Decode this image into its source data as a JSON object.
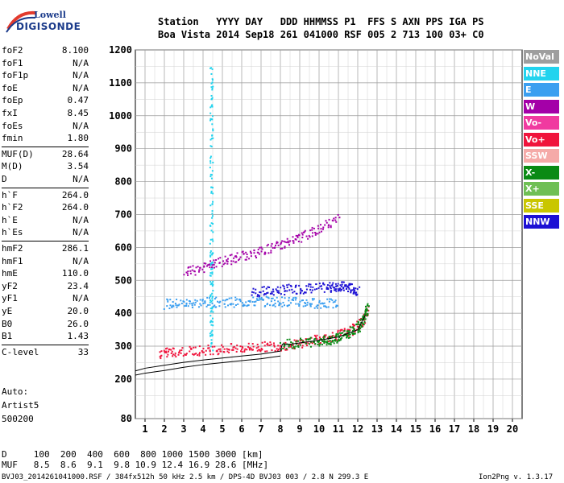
{
  "logo": {
    "top": "Lowell",
    "bottom": "DIGISONDE"
  },
  "header": {
    "line1": "Station   YYYY DAY   DDD HHMMSS P1  FFS S AXN PPS IGA PS",
    "line2": "Boa Vista 2014 Sep18 261 041000 RSF 005 2 713 100 03+ C0"
  },
  "params": [
    {
      "name": "foF2",
      "value": "8.100"
    },
    {
      "name": "foF1",
      "value": "N/A"
    },
    {
      "name": "foF1p",
      "value": "N/A"
    },
    {
      "name": "foE",
      "value": "N/A"
    },
    {
      "name": "foEp",
      "value": "0.47"
    },
    {
      "name": "fxI",
      "value": "8.45"
    },
    {
      "name": "foEs",
      "value": "N/A"
    },
    {
      "name": "fmin",
      "value": "1.80"
    },
    {
      "name": "MUF(D)",
      "value": "28.64"
    },
    {
      "name": "M(D)",
      "value": "3.54"
    },
    {
      "name": "D",
      "value": "N/A"
    },
    {
      "name": "h`F",
      "value": "264.0"
    },
    {
      "name": "h`F2",
      "value": "264.0"
    },
    {
      "name": "h`E",
      "value": "N/A"
    },
    {
      "name": "h`Es",
      "value": "N/A"
    },
    {
      "name": "hmF2",
      "value": "286.1"
    },
    {
      "name": "hmF1",
      "value": "N/A"
    },
    {
      "name": "hmE",
      "value": "110.0"
    },
    {
      "name": "yF2",
      "value": "23.4"
    },
    {
      "name": "yF1",
      "value": "N/A"
    },
    {
      "name": "yE",
      "value": "20.0"
    },
    {
      "name": "B0",
      "value": "26.0"
    },
    {
      "name": "B1",
      "value": "1.43"
    },
    {
      "name": "C-level",
      "value": "33"
    }
  ],
  "auto_label": "Auto:",
  "artist": "Artist5",
  "artist_version": "500200",
  "legend": [
    {
      "label": "NoVal",
      "color": "#9e9e9e"
    },
    {
      "label": "NNE",
      "color": "#22d3ee"
    },
    {
      "label": "E",
      "color": "#3b9ff0"
    },
    {
      "label": "W",
      "color": "#a400a8"
    },
    {
      "label": "Vo-",
      "color": "#f03aa0"
    },
    {
      "label": "Vo+",
      "color": "#f0143c"
    },
    {
      "label": "SSW",
      "color": "#f5aaa8"
    },
    {
      "label": "X-",
      "color": "#0a8a14"
    },
    {
      "label": "X+",
      "color": "#6fbf55"
    },
    {
      "label": "SSE",
      "color": "#c9c600"
    },
    {
      "label": "NNW",
      "color": "#1c10d4"
    }
  ],
  "footer": {
    "d_row": "D     100  200  400  600  800 1000 1500 3000 [km]",
    "muf_row": "MUF   8.5  8.6  9.1  9.8 10.9 12.4 16.9 28.6 [MHz]",
    "file_info": "BVJ03_2014261041000.RSF / 384fx512h 50 kHz 2.5 km / DPS-4D BVJ03 003 / 2.8 N 299.3 E",
    "version": "Ion2Png v. 1.3.17"
  },
  "chart_data": {
    "type": "scatter",
    "xlim": [
      0.5,
      20.5
    ],
    "ylim": [
      80,
      1200
    ],
    "x_ticks": [
      1,
      2,
      3,
      4,
      5,
      6,
      7,
      8,
      9,
      10,
      11,
      12,
      13,
      14,
      15,
      16,
      17,
      18,
      19,
      20
    ],
    "y_ticks": [
      80,
      200,
      300,
      400,
      500,
      600,
      700,
      800,
      900,
      1000,
      1100,
      1200
    ],
    "grid": true,
    "legend_position": "right",
    "traces": [
      {
        "name": "NNW",
        "x": [
          6.5,
          7.5,
          8.5,
          9.5,
          10.5,
          11.0,
          11.5,
          12.0
        ],
        "y": [
          465,
          470,
          475,
          478,
          480,
          485,
          480,
          470
        ]
      },
      {
        "name": "E",
        "x": [
          2.0,
          3.0,
          4.0,
          5.0,
          6.0,
          7.0,
          8.0,
          9.0,
          10.0,
          11.0
        ],
        "y": [
          430,
          432,
          435,
          436,
          436,
          438,
          438,
          435,
          432,
          430
        ]
      },
      {
        "name": "NNE",
        "x": [
          4.4,
          4.4,
          4.4,
          4.4,
          4.4,
          4.4,
          4.4
        ],
        "y": [
          300,
          400,
          500,
          600,
          800,
          1000,
          1150
        ]
      },
      {
        "name": "Vo+",
        "x": [
          1.7,
          2.5,
          3.5,
          4.5,
          5.5,
          6.5,
          7.5,
          8.5,
          9.5,
          10.5,
          11.5,
          12.2,
          12.5
        ],
        "y": [
          280,
          284,
          288,
          292,
          295,
          298,
          302,
          305,
          318,
          330,
          345,
          375,
          420
        ]
      },
      {
        "name": "X-",
        "x": [
          8.0,
          9.0,
          10.0,
          10.5,
          11.0,
          11.5,
          12.0,
          12.3,
          12.5
        ],
        "y": [
          306,
          312,
          318,
          322,
          330,
          340,
          360,
          385,
          420
        ]
      },
      {
        "name": "W",
        "x": [
          3.0,
          4.0,
          5.0,
          6.0,
          7.0,
          8.0,
          9.0,
          10.0,
          11.0
        ],
        "y": [
          525,
          540,
          560,
          575,
          590,
          610,
          630,
          660,
          690
        ]
      }
    ],
    "curves": [
      {
        "name": "profile",
        "x": [
          0.5,
          1.0,
          2.0,
          3.0,
          4.0,
          5.0,
          6.0,
          7.0,
          8.0,
          8.1,
          8.5,
          9.0,
          10.0,
          11.0,
          12.0,
          12.4
        ],
        "y": [
          225,
          233,
          242,
          251,
          258,
          264,
          270,
          276,
          285,
          306,
          306,
          310,
          318,
          328,
          350,
          395
        ]
      },
      {
        "name": "lower",
        "x": [
          0.5,
          1.0,
          2.0,
          3.0,
          4.0,
          5.0,
          6.0,
          7.0,
          8.0
        ],
        "y": [
          212,
          218,
          226,
          236,
          244,
          250,
          256,
          262,
          270
        ]
      }
    ]
  }
}
